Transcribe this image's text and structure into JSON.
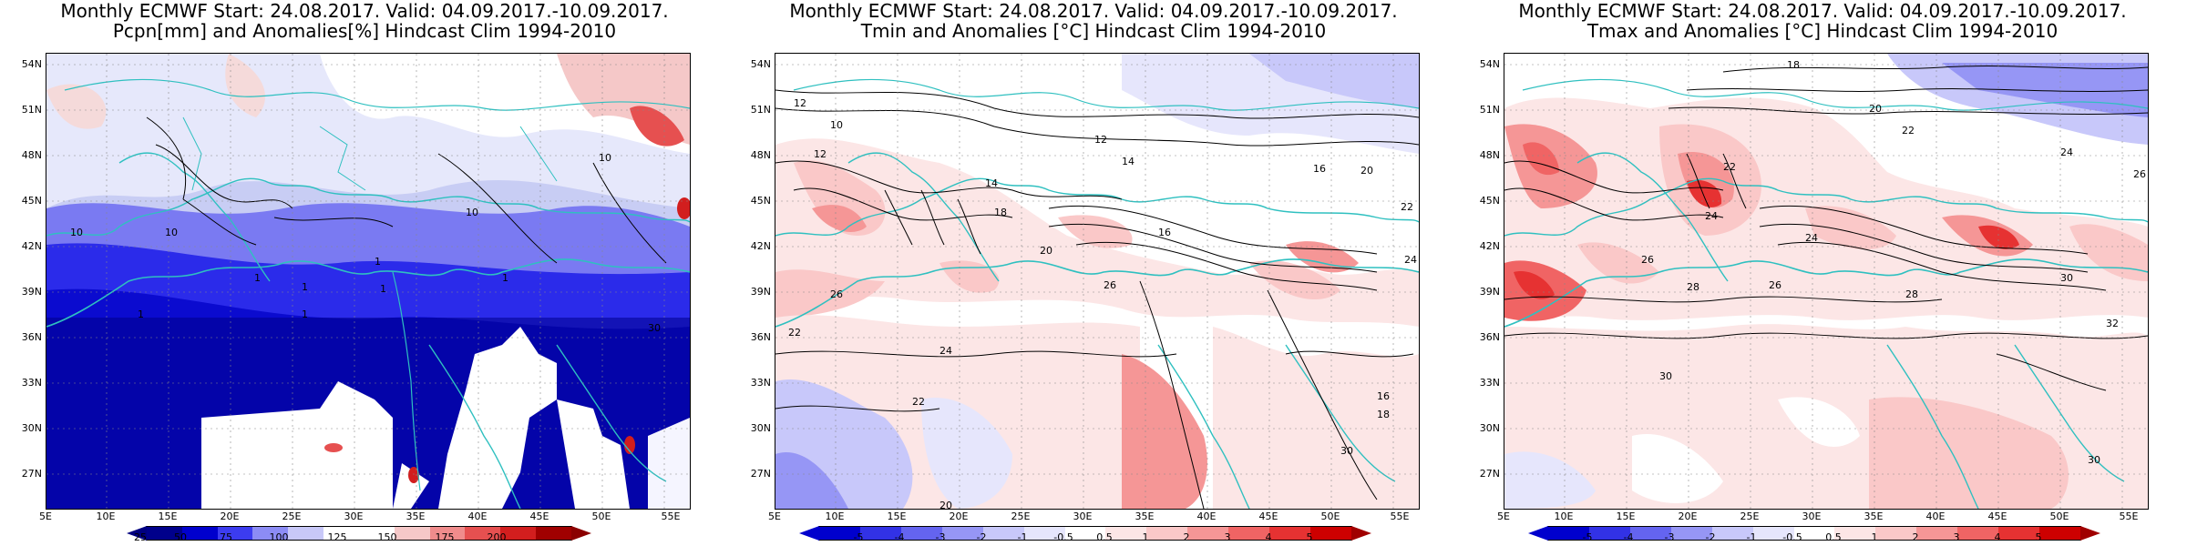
{
  "panels": [
    {
      "title_line1": "Monthly ECMWF Start: 24.08.2017. Valid: 04.09.2017.-10.09.2017.",
      "title_line2": "Pcpn[mm] and Anomalies[%] Hindcast Clim 1994-2010",
      "lat_labels": [
        "54N",
        "51N",
        "48N",
        "45N",
        "42N",
        "39N",
        "36N",
        "33N",
        "30N",
        "27N"
      ],
      "lon_labels": [
        "5E",
        "10E",
        "15E",
        "20E",
        "25E",
        "30E",
        "35E",
        "40E",
        "45E",
        "50E",
        "55E"
      ],
      "colorbar_labels": [
        "25",
        "50",
        "75",
        "100",
        "125",
        "150",
        "175",
        "200"
      ],
      "colorbar_colors": [
        "#00008b",
        "#0000cd",
        "#3c3cf0",
        "#8c8cf5",
        "#c8c8f8",
        "#ffffff",
        "#ffffff",
        "#f5c8c8",
        "#f08c8c",
        "#e65050",
        "#d21e1e",
        "#a00000"
      ],
      "contour_labels": [
        "10",
        "10",
        "10",
        "10",
        "1",
        "1",
        "1",
        "1",
        "1",
        "1",
        "1",
        "30"
      ]
    },
    {
      "title_line1": "Monthly ECMWF Start: 24.08.2017. Valid: 04.09.2017.-10.09.2017.",
      "title_line2": "Tmin and Anomalies [°C] Hindcast Clim 1994-2010",
      "lat_labels": [
        "54N",
        "51N",
        "48N",
        "45N",
        "42N",
        "39N",
        "36N",
        "33N",
        "30N",
        "27N"
      ],
      "lon_labels": [
        "5E",
        "10E",
        "15E",
        "20E",
        "25E",
        "30E",
        "35E",
        "40E",
        "45E",
        "50E",
        "55E"
      ],
      "colorbar_labels": [
        "-5",
        "-4",
        "-3",
        "-2",
        "-1",
        "-0.5",
        "0.5",
        "1",
        "2",
        "3",
        "4",
        "5"
      ],
      "colorbar_colors": [
        "#0000cd",
        "#3232e6",
        "#6464f0",
        "#9696f5",
        "#c8c8fa",
        "#e6e6fc",
        "#ffffff",
        "#fce6e6",
        "#fac8c8",
        "#f59696",
        "#f06464",
        "#e63232",
        "#cd0000"
      ],
      "contour_labels": [
        "12",
        "12",
        "12",
        "14",
        "16",
        "20",
        "22",
        "24",
        "26",
        "22",
        "20",
        "18",
        "10",
        "14",
        "16",
        "24",
        "22",
        "20",
        "26",
        "30",
        "16",
        "18"
      ]
    },
    {
      "title_line1": "Monthly ECMWF Start: 24.08.2017. Valid: 04.09.2017.-10.09.2017.",
      "title_line2": "Tmax and Anomalies [°C] Hindcast Clim 1994-2010",
      "lat_labels": [
        "54N",
        "51N",
        "48N",
        "45N",
        "42N",
        "39N",
        "36N",
        "33N",
        "30N",
        "27N"
      ],
      "lon_labels": [
        "5E",
        "10E",
        "15E",
        "20E",
        "25E",
        "30E",
        "35E",
        "40E",
        "45E",
        "50E",
        "55E"
      ],
      "colorbar_labels": [
        "-5",
        "-4",
        "-3",
        "-2",
        "-1",
        "-0.5",
        "0.5",
        "1",
        "2",
        "3",
        "4",
        "5"
      ],
      "colorbar_colors": [
        "#0000cd",
        "#3232e6",
        "#6464f0",
        "#9696f5",
        "#c8c8fa",
        "#e6e6fc",
        "#ffffff",
        "#fce6e6",
        "#fac8c8",
        "#f59696",
        "#f06464",
        "#e63232",
        "#cd0000"
      ],
      "contour_labels": [
        "18",
        "20",
        "22",
        "24",
        "26",
        "24",
        "22",
        "26",
        "28",
        "30",
        "24",
        "26",
        "28",
        "30",
        "32",
        "30"
      ]
    }
  ]
}
